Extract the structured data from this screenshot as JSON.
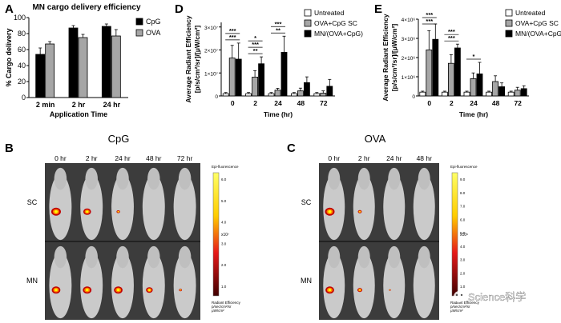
{
  "panels": {
    "A": {
      "letter": "A"
    },
    "B": {
      "letter": "B",
      "title": "CpG",
      "timepoints": [
        "0 hr",
        "2 hr",
        "24 hr",
        "48 hr",
        "72 hr"
      ],
      "rows": [
        "SC",
        "MN"
      ],
      "colorbar": {
        "header": "Epi-fluorescence",
        "ticks": [
          "6.0",
          "5.0",
          "4.0",
          "3.0",
          "2.0",
          "1.0"
        ],
        "scale": "x10⁷",
        "footer1": "Radiant Efficiency",
        "footer2": "p/sec/cm²/sr",
        "footer3": "μW/cm²"
      }
    },
    "C": {
      "letter": "C",
      "title": "OVA",
      "timepoints": [
        "0 hr",
        "2 hr",
        "24 hr",
        "48 hr"
      ],
      "rows": [
        "SC",
        "MN"
      ],
      "colorbar": {
        "header": "Epi-fluorescence",
        "ticks": [
          "9.0",
          "8.0",
          "7.0",
          "6.0",
          "5.0",
          "4.0",
          "3.0",
          "2.0",
          "1.0"
        ],
        "scale": "x10⁶",
        "footer1": "Radiant Efficiency",
        "footer2": "p/sec/cm²/sr",
        "footer3": "μW/cm²"
      }
    },
    "D": {
      "letter": "D"
    },
    "E": {
      "letter": "E"
    }
  },
  "watermark": "Science科学",
  "chart_data": [
    {
      "id": "A",
      "type": "bar",
      "title": "MN cargo delivery efficiency",
      "xlabel": "Application Time",
      "ylabel": "% Cargo delivery",
      "categories": [
        "2 min",
        "2 hr",
        "24 hr"
      ],
      "ylim": [
        0,
        100
      ],
      "yticks": [
        0,
        20,
        40,
        60,
        80,
        100
      ],
      "legend": "top-right",
      "series": [
        {
          "name": "CpG",
          "color": "#000000",
          "values": [
            54,
            87,
            89
          ],
          "errors": [
            8,
            3,
            3
          ]
        },
        {
          "name": "OVA",
          "color": "#a6a6a6",
          "values": [
            67,
            75,
            77
          ],
          "errors": [
            3,
            4,
            8
          ]
        }
      ]
    },
    {
      "id": "D",
      "type": "bar",
      "ylabel": [
        "Average Radiant Efficiency",
        "[p/s/cm²/sr]/[μW/cm²]"
      ],
      "xlabel": "Time (hr)",
      "categories": [
        "0",
        "2",
        "24",
        "48",
        "72"
      ],
      "ylim": [
        0,
        3.2
      ],
      "ytick_labels": [
        "0",
        "1×10⁷",
        "2×10⁷",
        "3×10⁷"
      ],
      "yticks": [
        0,
        1,
        2,
        3
      ],
      "unit_scale": "×10⁷",
      "legend": "top-right",
      "series": [
        {
          "name": "Untreated",
          "color": "#ffffff",
          "values": [
            0.1,
            0.1,
            0.1,
            0.1,
            0.1
          ],
          "errors": [
            0.05,
            0.05,
            0.05,
            0.05,
            0.05
          ]
        },
        {
          "name": "OVA+CpG SC",
          "color": "#a6a6a6",
          "values": [
            1.65,
            0.82,
            0.25,
            0.22,
            0.12
          ],
          "errors": [
            0.55,
            0.28,
            0.08,
            0.12,
            0.1
          ]
        },
        {
          "name": "MN/(OVA+CpG)",
          "color": "#000000",
          "values": [
            1.6,
            1.4,
            1.9,
            0.58,
            0.42
          ],
          "errors": [
            0.7,
            0.3,
            0.7,
            0.25,
            0.3
          ]
        }
      ],
      "significance": [
        {
          "category": 0,
          "labels": [
            "***",
            "***"
          ]
        },
        {
          "category": 1,
          "labels": [
            "*",
            "***",
            "**"
          ]
        },
        {
          "category": 2,
          "labels": [
            "***",
            "**"
          ]
        }
      ]
    },
    {
      "id": "E",
      "type": "bar",
      "ylabel": [
        "Average Radiant Efficiency",
        "[p/s/cm²/sr]/[μW/cm²]"
      ],
      "xlabel": "Time (hr)",
      "categories": [
        "0",
        "2",
        "24",
        "48",
        "72"
      ],
      "ylim": [
        0,
        4.0
      ],
      "ytick_labels": [
        "0",
        "1×10⁶",
        "2×10⁶",
        "3×10⁶",
        "4×10⁶"
      ],
      "yticks": [
        0,
        1,
        2,
        3,
        4
      ],
      "unit_scale": "×10⁶",
      "legend": "top-right",
      "series": [
        {
          "name": "Untreated",
          "color": "#ffffff",
          "values": [
            0.2,
            0.2,
            0.2,
            0.2,
            0.2
          ],
          "errors": [
            0.05,
            0.05,
            0.05,
            0.05,
            0.05
          ]
        },
        {
          "name": "OVA+CpG SC",
          "color": "#a6a6a6",
          "values": [
            2.4,
            1.7,
            0.9,
            0.75,
            0.3
          ],
          "errors": [
            1.0,
            0.45,
            0.3,
            0.3,
            0.15
          ]
        },
        {
          "name": "MN/(OVA+CpG)",
          "color": "#000000",
          "values": [
            2.95,
            2.5,
            1.15,
            0.48,
            0.38
          ],
          "errors": [
            0.8,
            0.2,
            0.6,
            0.2,
            0.15
          ]
        }
      ],
      "significance": [
        {
          "category": 0,
          "labels": [
            "***",
            "***"
          ]
        },
        {
          "category": 1,
          "labels": [
            "***",
            "***"
          ]
        },
        {
          "category": 2,
          "labels": [
            "*"
          ]
        }
      ]
    }
  ]
}
